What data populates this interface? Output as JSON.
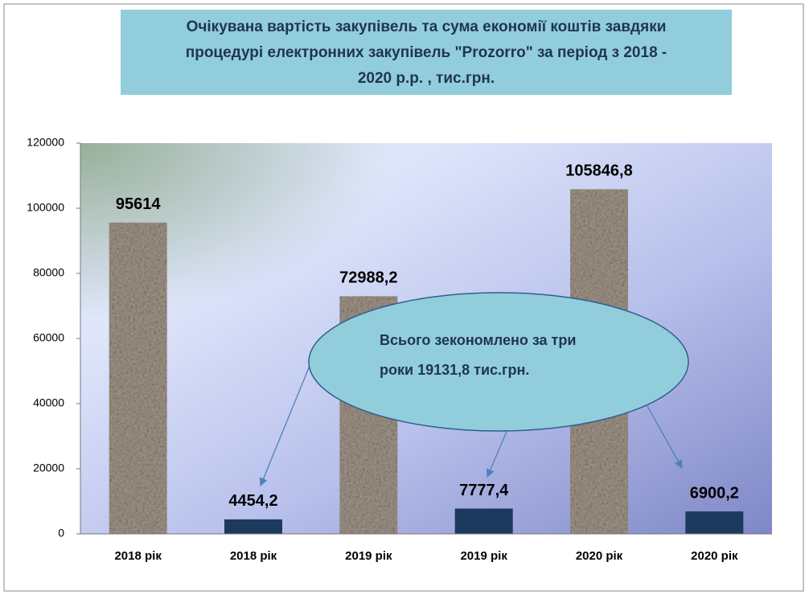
{
  "chart_data": {
    "type": "bar",
    "title": [
      "Очікувана вартість закупівель та сума економії коштів завдяки",
      "процедурі  електронних закупівель \"Prozorro\" за період з 2018 -",
      "2020 р.р. , тис.грн."
    ],
    "categories": [
      "2018 рік",
      "2018 рік",
      "2019 рік",
      "2019 рік",
      "2020 рік",
      "2020 рік"
    ],
    "values": [
      95614,
      4454.2,
      72988.2,
      7777.4,
      105846.8,
      6900.2
    ],
    "value_labels": [
      "95614",
      "4454,2",
      "72988,2",
      "7777,4",
      "105846,8",
      "6900,2"
    ],
    "colors": [
      "#a3978a",
      "#1b3a5e",
      "#a3978a",
      "#1b3a5e",
      "#a3978a",
      "#1b3a5e"
    ],
    "ylim": [
      0,
      120000
    ],
    "yticks": [
      0,
      20000,
      40000,
      60000,
      80000,
      100000,
      120000
    ],
    "annotation": [
      "Всього зекономлено за три",
      "роки  19131,8 тис.грн."
    ]
  }
}
